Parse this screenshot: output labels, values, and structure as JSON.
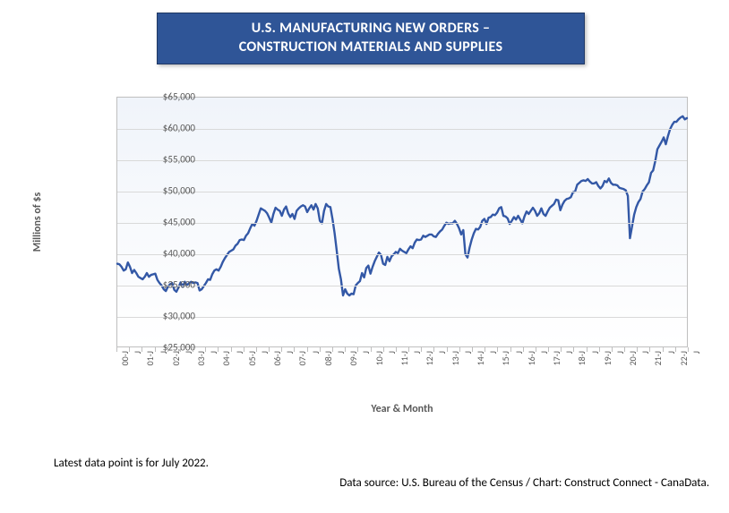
{
  "title": {
    "line1": "U.S. MANUFACTURING NEW ORDERS –",
    "line2": "CONSTRUCTION MATERIALS AND SUPPLIES",
    "bg_color": "#2f5597",
    "text_color": "#ffffff",
    "fontsize": 16
  },
  "chart": {
    "type": "line",
    "y_axis_label": "Millions of $s",
    "x_axis_label": "Year & Month",
    "ylim": [
      25000,
      65000
    ],
    "ytick_step": 5000,
    "ytick_format_prefix": "$",
    "ytick_format_thousands": true,
    "xlim_index": [
      0,
      270
    ],
    "x_tick_labels": [
      "00-J",
      "  J",
      "01-J",
      "  J",
      "02-J",
      "  J",
      "03-J",
      "  J",
      "04-J",
      "  J",
      "05-J",
      "  J",
      "06-J",
      "  J",
      "07-J",
      "  J",
      "08-J",
      "  J",
      "09-J",
      "  J",
      "10-J",
      "  J",
      "11-J",
      "  J",
      "12-J",
      "  J",
      "13-J",
      "  J",
      "14-J",
      "  J",
      "15-J",
      "  J",
      "16-J",
      "  J",
      "17-J",
      "  J",
      "18-J",
      "  J",
      "19-J",
      "  J",
      "20-J",
      "  J",
      "21-J",
      "  J",
      "22-J",
      "  J"
    ],
    "x_tick_positions": [
      0,
      6,
      12,
      18,
      24,
      30,
      36,
      42,
      48,
      54,
      60,
      66,
      72,
      78,
      84,
      90,
      96,
      102,
      108,
      114,
      120,
      126,
      132,
      138,
      144,
      150,
      156,
      162,
      168,
      174,
      180,
      186,
      192,
      198,
      204,
      210,
      216,
      222,
      228,
      234,
      240,
      246,
      252,
      258,
      264,
      270
    ],
    "line_color": "#3358a6",
    "line_width": 2.4,
    "plot_bg_top": "#f0f4fa",
    "plot_bg_bottom": "#ffffff",
    "grid_color": "#d9d9d9",
    "border_color": "#bfbfbf",
    "tick_fontsize": 11,
    "label_fontsize": 12,
    "series": [
      38300,
      38200,
      37800,
      37200,
      37400,
      38500,
      37800,
      36800,
      37300,
      36800,
      36200,
      36000,
      35800,
      36200,
      36800,
      36200,
      36500,
      36600,
      36700,
      35700,
      35200,
      34800,
      34200,
      33900,
      34600,
      35000,
      35200,
      34100,
      33800,
      34500,
      35300,
      34600,
      35400,
      34800,
      35200,
      35400,
      35200,
      35300,
      35200,
      34000,
      34200,
      34700,
      35200,
      35800,
      35700,
      36600,
      37200,
      37400,
      37200,
      37800,
      38600,
      39200,
      39700,
      40200,
      40400,
      40600,
      41200,
      41500,
      42100,
      42200,
      42100,
      42800,
      43200,
      44000,
      44700,
      44400,
      45200,
      46200,
      47200,
      47000,
      46800,
      46400,
      45700,
      44900,
      46300,
      47300,
      47000,
      46800,
      46000,
      47000,
      47500,
      46400,
      45800,
      46300,
      45500,
      46800,
      47200,
      47500,
      47700,
      47500,
      46600,
      47200,
      47700,
      47000,
      47900,
      47200,
      45200,
      44800,
      46800,
      47900,
      47500,
      47400,
      45500,
      43200,
      40400,
      37500,
      35800,
      33200,
      34200,
      33500,
      33200,
      33500,
      33400,
      34800,
      35200,
      35500,
      36800,
      36100,
      37600,
      38000,
      36700,
      37800,
      38700,
      39400,
      40100,
      39700,
      38300,
      38100,
      39400,
      38700,
      39500,
      39800,
      40200,
      40000,
      40700,
      40400,
      40200,
      40000,
      40600,
      41100,
      40800,
      41700,
      42200,
      42100,
      42200,
      42800,
      42600,
      42800,
      43000,
      43000,
      42700,
      42600,
      43100,
      43500,
      43800,
      44400,
      44900,
      44700,
      44800,
      44800,
      45200,
      44700,
      44000,
      43000,
      43700,
      39800,
      39300,
      40900,
      42200,
      43200,
      43900,
      43800,
      44200,
      45200,
      45500,
      44700,
      45700,
      45800,
      46200,
      46100,
      46500,
      47200,
      47400,
      46000,
      45900,
      45600,
      44700,
      45200,
      45800,
      45400,
      46000,
      45400,
      44800,
      45900,
      46700,
      46300,
      46800,
      47300,
      46800,
      46000,
      46400,
      47200,
      46300,
      46000,
      46700,
      47300,
      47600,
      47900,
      48600,
      48500,
      46900,
      47800,
      48400,
      48700,
      48800,
      49000,
      49800,
      49900,
      51000,
      51300,
      51600,
      51700,
      51600,
      51900,
      51500,
      51200,
      51200,
      51400,
      50800,
      50400,
      50800,
      51600,
      51400,
      52000,
      51300,
      51000,
      51000,
      50900,
      50500,
      50400,
      50300,
      50100,
      49200,
      42400,
      44300,
      46200,
      47400,
      48200,
      48700,
      49900,
      50300,
      50900,
      51400,
      52900,
      53300,
      54800,
      56700,
      57300,
      57900,
      58600,
      57500,
      58800,
      59900,
      60600,
      61100,
      61100,
      61500,
      61800,
      62000,
      61500,
      61700
    ]
  },
  "footer": {
    "latest": "Latest data point is for July 2022.",
    "source": "Data source: U.S. Bureau of the Census / Chart: Construct Connect - CanaData."
  }
}
